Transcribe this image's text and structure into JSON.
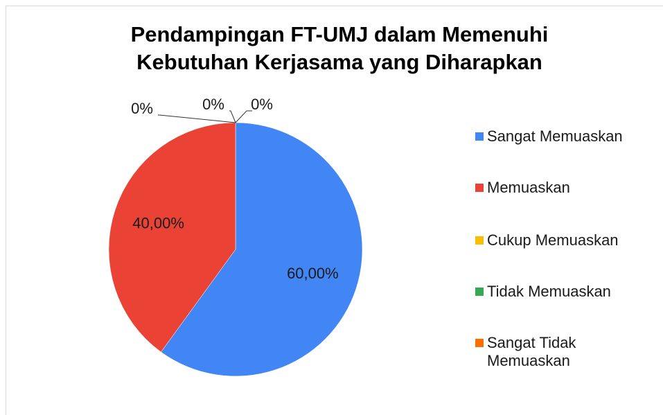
{
  "chart_data": {
    "type": "pie",
    "title": "Pendampingan FT-UMJ dalam Memenuhi Kebutuhan Kerjasama yang Diharapkan",
    "categories": [
      "Sangat Memuaskan",
      "Memuaskan",
      "Cukup Memuaskan",
      "Tidak Memuaskan",
      "Sangat Tidak Memuaskan"
    ],
    "values": [
      60,
      40,
      0,
      0,
      0
    ],
    "value_labels": [
      "60,00%",
      "40,00%",
      "0%",
      "0%",
      "0%"
    ],
    "colors": [
      "#4285f4",
      "#ea4335",
      "#fbbc04",
      "#34a853",
      "#ff6d01"
    ],
    "legend": "right"
  }
}
